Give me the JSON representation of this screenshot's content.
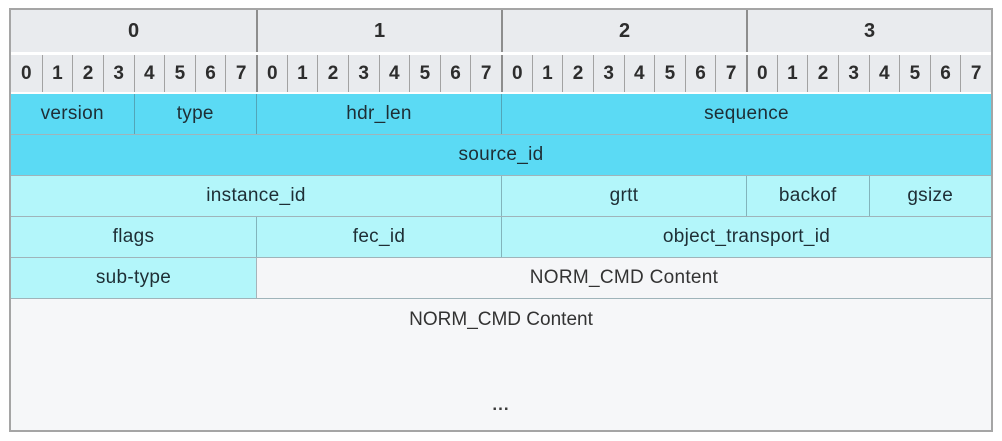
{
  "colors": {
    "medium_cyan": "#5bdaf4",
    "light_cyan": "#b3f6fa",
    "header_bg": "#e9ebee",
    "content_bg": "#f6f7f9",
    "grid_line": "#9fb4ba",
    "outer_border": "#a5a5a5"
  },
  "byte_headers": [
    "0",
    "1",
    "2",
    "3"
  ],
  "bit_headers": [
    "0",
    "1",
    "2",
    "3",
    "4",
    "5",
    "6",
    "7"
  ],
  "field_rows": [
    {
      "cells": [
        {
          "label": "version",
          "bits": 4,
          "color": "medium"
        },
        {
          "label": "type",
          "bits": 4,
          "color": "medium"
        },
        {
          "label": "hdr_len",
          "bits": 8,
          "color": "medium"
        },
        {
          "label": "sequence",
          "bits": 16,
          "color": "medium"
        }
      ]
    },
    {
      "cells": [
        {
          "label": "source_id",
          "bits": 32,
          "color": "medium"
        }
      ]
    },
    {
      "cells": [
        {
          "label": "instance_id",
          "bits": 16,
          "color": "light"
        },
        {
          "label": "grtt",
          "bits": 8,
          "color": "light"
        },
        {
          "label": "backof",
          "bits": 4,
          "color": "light"
        },
        {
          "label": "gsize",
          "bits": 4,
          "color": "light"
        }
      ]
    },
    {
      "cells": [
        {
          "label": "flags",
          "bits": 8,
          "color": "light"
        },
        {
          "label": "fec_id",
          "bits": 8,
          "color": "light"
        },
        {
          "label": "object_transport_id",
          "bits": 16,
          "color": "light"
        }
      ]
    },
    {
      "cells": [
        {
          "label": "sub-type",
          "bits": 8,
          "color": "light"
        },
        {
          "label": "NORM_CMD Content",
          "bits": 24,
          "color": "content"
        }
      ]
    }
  ],
  "content_area": {
    "label": "NORM_CMD Content",
    "ellipsis": "..."
  }
}
